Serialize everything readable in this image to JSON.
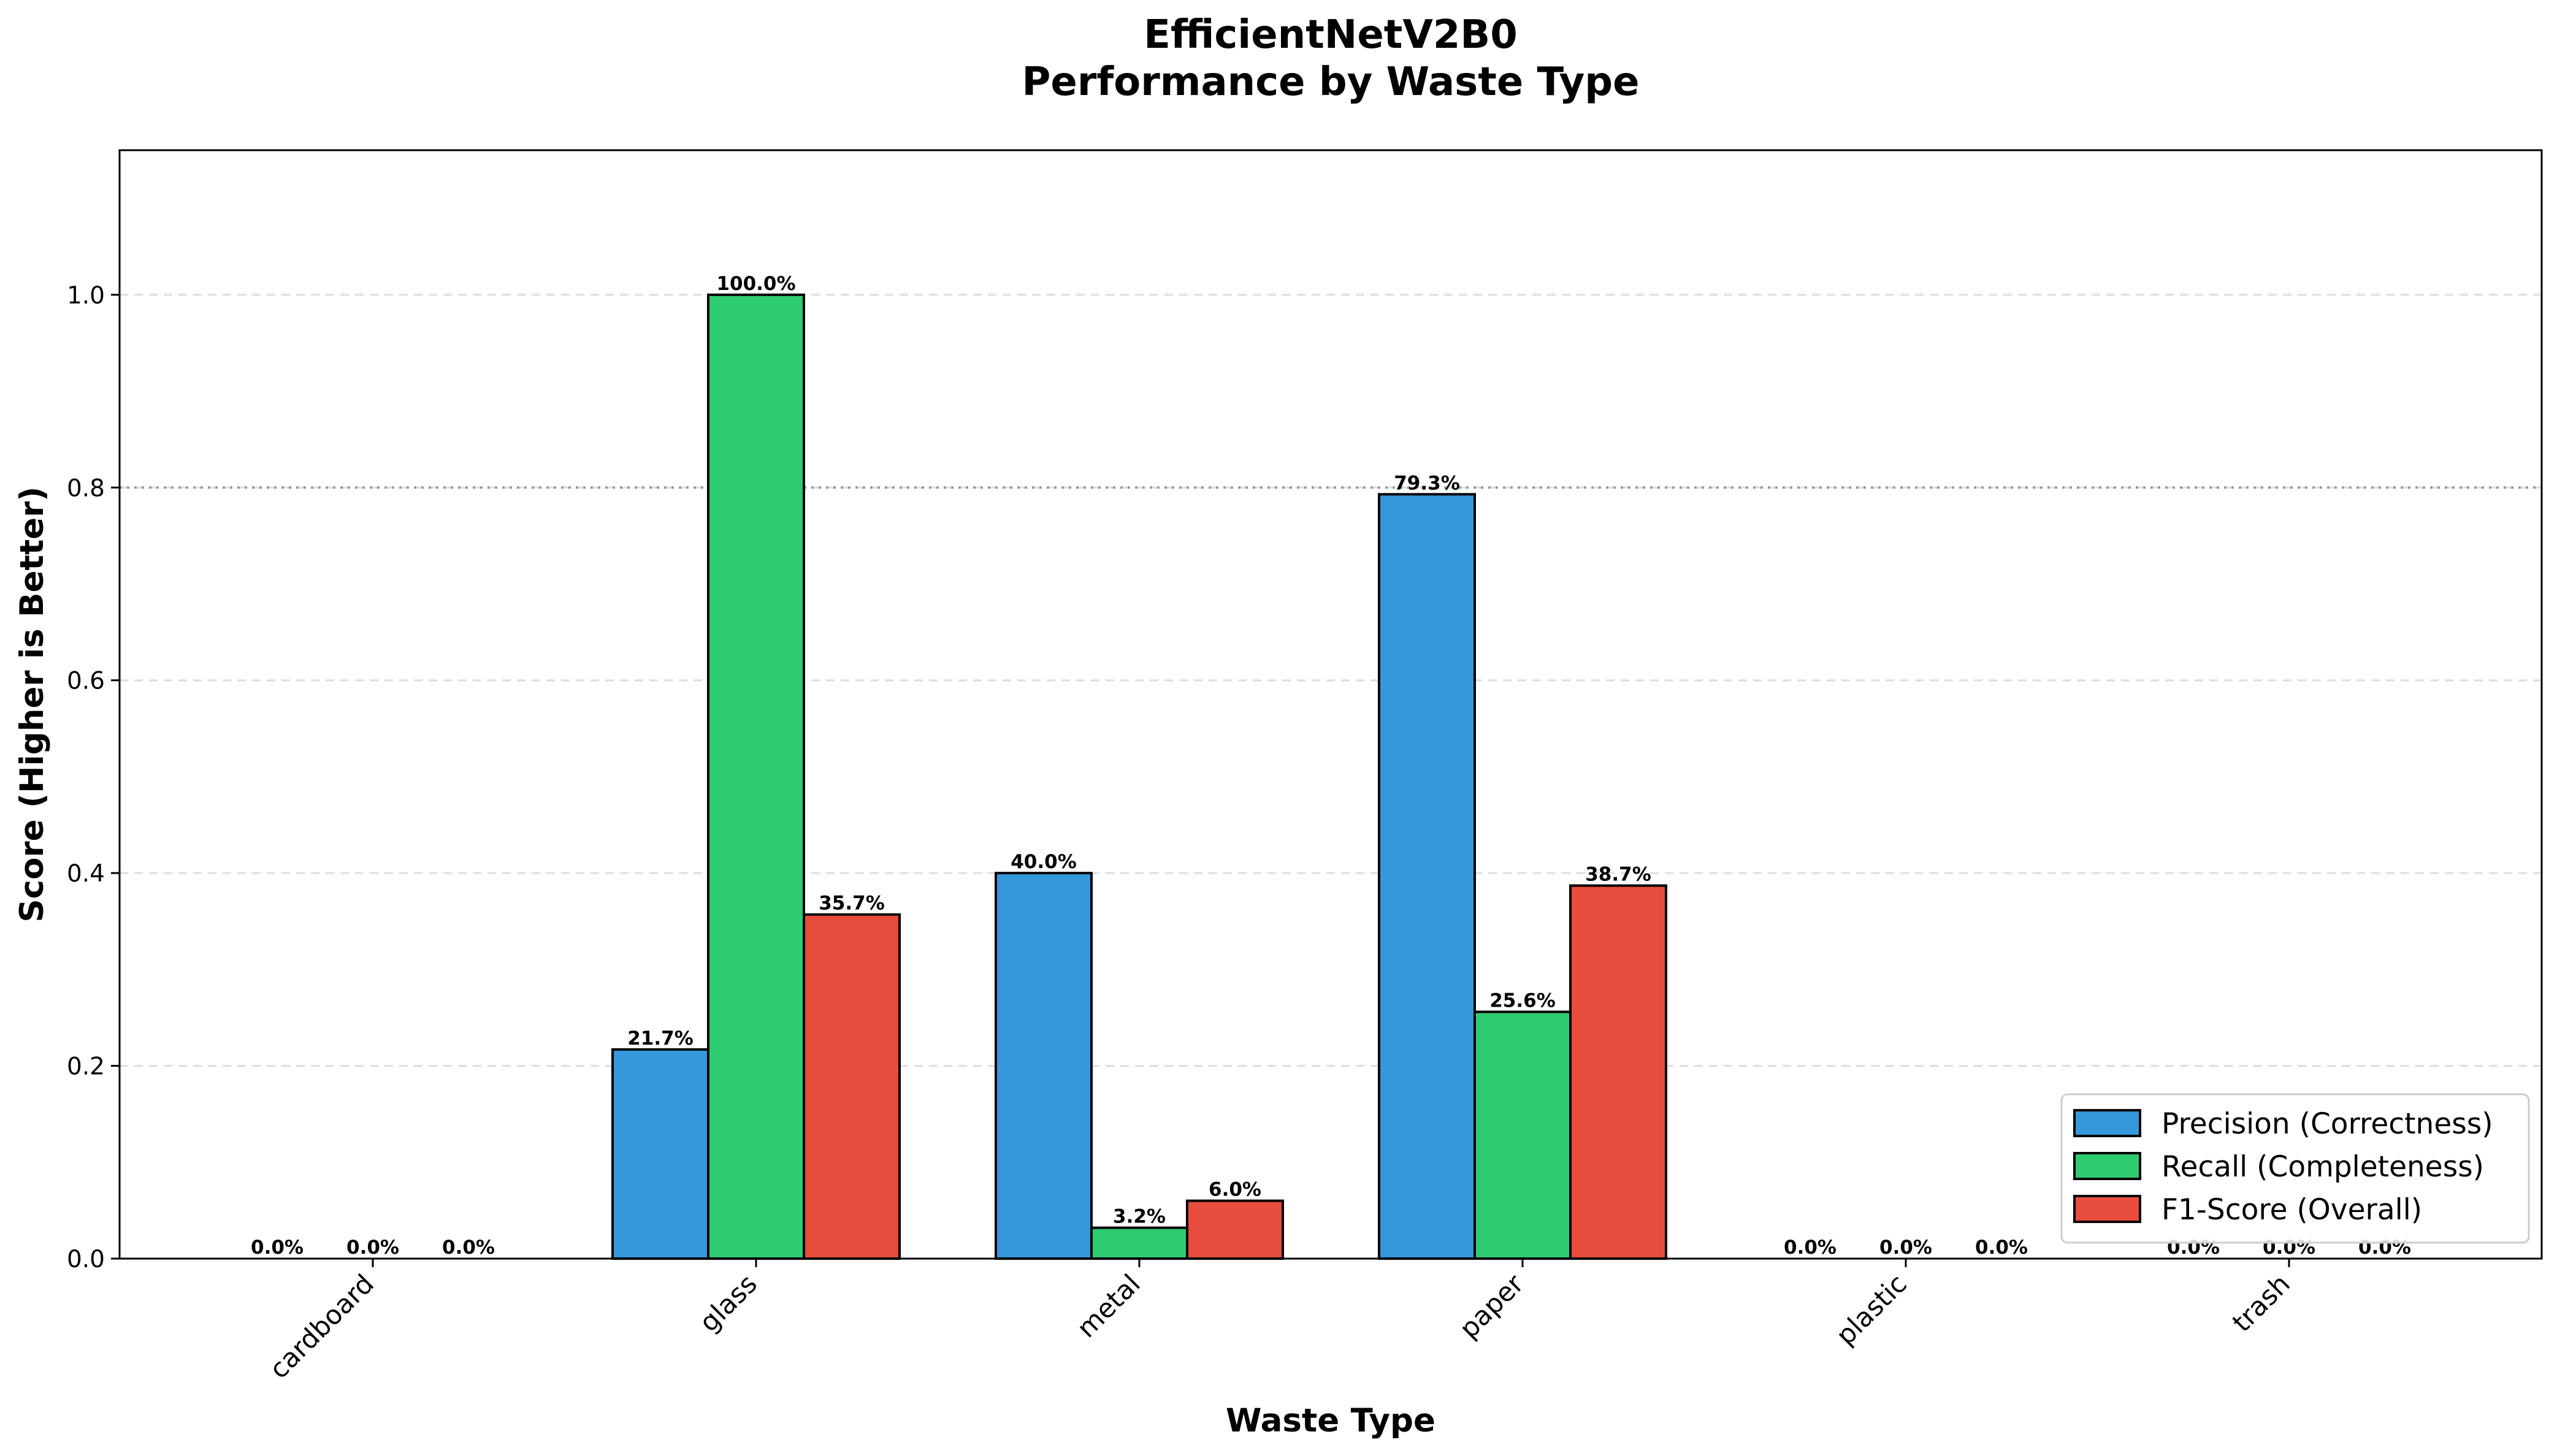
{
  "chart_data": {
    "type": "bar",
    "title": "EfficientNetV2B0",
    "subtitle": "Performance by Waste Type",
    "xlabel": "Waste Type",
    "ylabel": "Score (Higher is Better)",
    "ylim": [
      0,
      1.15
    ],
    "yticks": [
      0.0,
      0.2,
      0.4,
      0.6,
      0.8,
      1.0
    ],
    "ytick_labels": [
      "0.0",
      "0.2",
      "0.4",
      "0.6",
      "0.8",
      "1.0"
    ],
    "reference_line": 0.8,
    "grid": true,
    "legend_position": "lower-right",
    "categories": [
      "cardboard",
      "glass",
      "metal",
      "paper",
      "plastic",
      "trash"
    ],
    "series": [
      {
        "name": "Precision (Correctness)",
        "color": "#3498db",
        "values": [
          0.0,
          0.217,
          0.4,
          0.793,
          0.0,
          0.0
        ],
        "labels": [
          "0.0%",
          "21.7%",
          "40.0%",
          "79.3%",
          "0.0%",
          "0.0%"
        ]
      },
      {
        "name": "Recall (Completeness)",
        "color": "#2ecc71",
        "values": [
          0.0,
          1.0,
          0.032,
          0.256,
          0.0,
          0.0
        ],
        "labels": [
          "0.0%",
          "100.0%",
          "3.2%",
          "25.6%",
          "0.0%",
          "0.0%"
        ]
      },
      {
        "name": "F1-Score (Overall)",
        "color": "#e74c3c",
        "values": [
          0.0,
          0.357,
          0.06,
          0.387,
          0.0,
          0.0
        ],
        "labels": [
          "0.0%",
          "35.7%",
          "6.0%",
          "38.7%",
          "0.0%",
          "0.0%"
        ]
      }
    ]
  }
}
